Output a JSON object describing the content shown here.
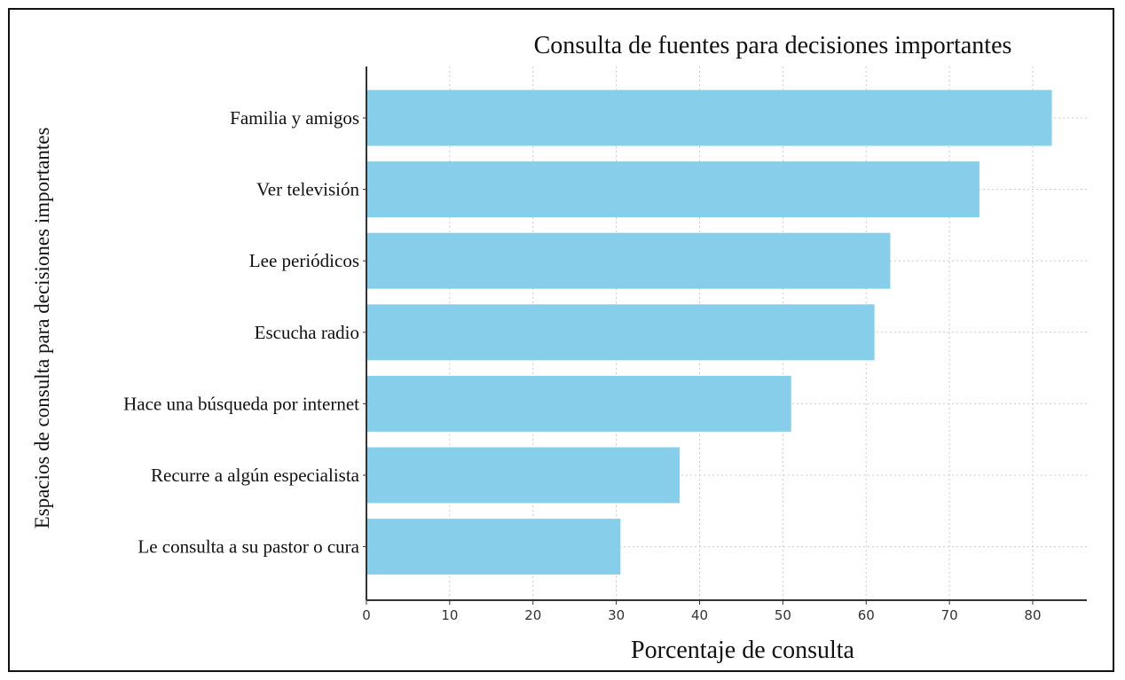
{
  "chart_data": {
    "type": "bar",
    "orientation": "horizontal",
    "title": "Consulta de fuentes para decisiones importantes",
    "xlabel": "Porcentaje de consulta",
    "ylabel": "Espacios de consulta para decisiones importantes",
    "categories": [
      "Familia y amigos",
      "Ver televisión",
      "Lee periódicos",
      "Escucha radio",
      "Hace una búsqueda por internet",
      "Recurre a algún especialista",
      "Le consulta a su pastor o cura"
    ],
    "values": [
      82.3,
      73.6,
      62.9,
      61.0,
      51.0,
      37.6,
      30.5
    ],
    "xlim": [
      0,
      86.5
    ],
    "xticks": [
      "0",
      "10",
      "20",
      "30",
      "40",
      "50",
      "60",
      "70",
      "80"
    ],
    "grid": true,
    "bar_color": "#87CEEB"
  }
}
